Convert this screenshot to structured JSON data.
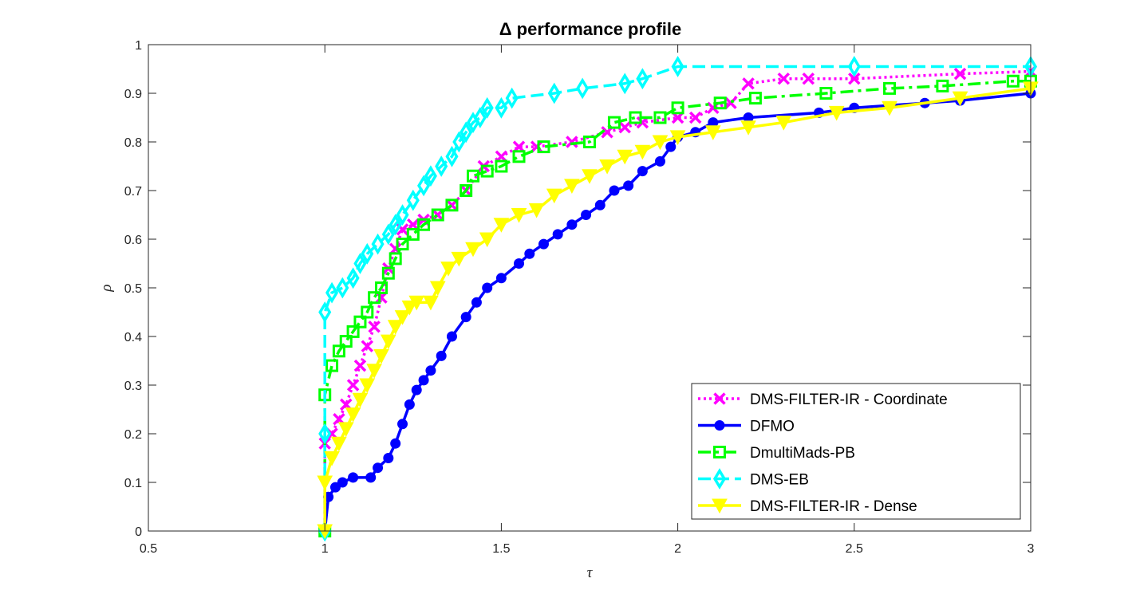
{
  "chart_data": {
    "type": "line",
    "title": "Δ performance profile",
    "xlabel": "τ",
    "ylabel": "ρ",
    "xlim": [
      0.5,
      3
    ],
    "ylim": [
      0,
      1
    ],
    "x_ticks": [
      "0.5",
      "1",
      "1.5",
      "2",
      "2.5",
      "3"
    ],
    "y_ticks": [
      "0",
      "0.1",
      "0.2",
      "0.3",
      "0.4",
      "0.5",
      "0.6",
      "0.7",
      "0.8",
      "0.9",
      "1"
    ],
    "grid": false,
    "legend_position": "bottom-right",
    "series": [
      {
        "name": "DMS-FILTER-IR - Coordinate",
        "color": "#ff00ff",
        "line_style": "dotted",
        "marker": "x",
        "x": [
          1.0,
          1.0,
          1.02,
          1.04,
          1.06,
          1.08,
          1.1,
          1.12,
          1.14,
          1.16,
          1.18,
          1.2,
          1.22,
          1.25,
          1.28,
          1.32,
          1.36,
          1.4,
          1.45,
          1.5,
          1.55,
          1.6,
          1.7,
          1.8,
          1.85,
          1.9,
          2.0,
          2.05,
          2.1,
          2.15,
          2.2,
          2.3,
          2.37,
          2.5,
          2.8,
          3.0
        ],
        "y": [
          0.0,
          0.18,
          0.2,
          0.23,
          0.26,
          0.3,
          0.34,
          0.38,
          0.42,
          0.48,
          0.54,
          0.58,
          0.62,
          0.63,
          0.64,
          0.65,
          0.67,
          0.7,
          0.75,
          0.77,
          0.79,
          0.79,
          0.8,
          0.82,
          0.83,
          0.84,
          0.85,
          0.85,
          0.87,
          0.88,
          0.92,
          0.93,
          0.93,
          0.93,
          0.94,
          0.945
        ]
      },
      {
        "name": "DFMO",
        "color": "#0000ff",
        "line_style": "solid",
        "marker": "o",
        "x": [
          1.0,
          1.01,
          1.03,
          1.05,
          1.08,
          1.13,
          1.15,
          1.18,
          1.2,
          1.22,
          1.24,
          1.26,
          1.28,
          1.3,
          1.33,
          1.36,
          1.4,
          1.43,
          1.46,
          1.5,
          1.55,
          1.58,
          1.62,
          1.66,
          1.7,
          1.74,
          1.78,
          1.82,
          1.86,
          1.9,
          1.95,
          1.98,
          2.0,
          2.05,
          2.1,
          2.2,
          2.4,
          2.5,
          2.7,
          2.8,
          3.0
        ],
        "y": [
          0.0,
          0.07,
          0.09,
          0.1,
          0.11,
          0.11,
          0.13,
          0.15,
          0.18,
          0.22,
          0.26,
          0.29,
          0.31,
          0.33,
          0.36,
          0.4,
          0.44,
          0.47,
          0.5,
          0.52,
          0.55,
          0.57,
          0.59,
          0.61,
          0.63,
          0.65,
          0.67,
          0.7,
          0.71,
          0.74,
          0.76,
          0.79,
          0.81,
          0.82,
          0.84,
          0.85,
          0.86,
          0.87,
          0.88,
          0.885,
          0.9
        ]
      },
      {
        "name": "DmultiMads-PB",
        "color": "#00ff00",
        "line_style": "dashdot",
        "marker": "square",
        "x": [
          1.0,
          1.0,
          1.02,
          1.04,
          1.06,
          1.08,
          1.1,
          1.12,
          1.14,
          1.16,
          1.18,
          1.2,
          1.22,
          1.25,
          1.28,
          1.32,
          1.36,
          1.4,
          1.42,
          1.46,
          1.5,
          1.55,
          1.62,
          1.75,
          1.82,
          1.88,
          1.95,
          2.0,
          2.12,
          2.22,
          2.42,
          2.6,
          2.75,
          2.95,
          3.0
        ],
        "y": [
          0.0,
          0.28,
          0.34,
          0.37,
          0.39,
          0.41,
          0.43,
          0.45,
          0.48,
          0.5,
          0.53,
          0.56,
          0.59,
          0.61,
          0.63,
          0.65,
          0.67,
          0.7,
          0.73,
          0.74,
          0.75,
          0.77,
          0.79,
          0.8,
          0.84,
          0.85,
          0.85,
          0.87,
          0.88,
          0.89,
          0.9,
          0.91,
          0.915,
          0.925,
          0.925
        ]
      },
      {
        "name": "DMS-EB",
        "color": "#00ffff",
        "line_style": "dashed",
        "marker": "diamond",
        "x": [
          1.0,
          1.0,
          1.0,
          1.02,
          1.05,
          1.08,
          1.1,
          1.12,
          1.15,
          1.18,
          1.2,
          1.22,
          1.25,
          1.28,
          1.3,
          1.33,
          1.36,
          1.38,
          1.4,
          1.42,
          1.44,
          1.46,
          1.5,
          1.53,
          1.65,
          1.73,
          1.85,
          1.9,
          2.0,
          2.5,
          3.0
        ],
        "y": [
          0.0,
          0.2,
          0.45,
          0.49,
          0.5,
          0.52,
          0.55,
          0.57,
          0.59,
          0.61,
          0.63,
          0.65,
          0.68,
          0.71,
          0.73,
          0.75,
          0.77,
          0.8,
          0.82,
          0.84,
          0.85,
          0.87,
          0.87,
          0.89,
          0.9,
          0.91,
          0.92,
          0.93,
          0.955,
          0.955,
          0.955
        ]
      },
      {
        "name": "DMS-FILTER-IR - Dense",
        "color": "#ffff00",
        "line_style": "solid",
        "marker": "triangle-down",
        "x": [
          1.0,
          1.0,
          1.02,
          1.04,
          1.06,
          1.08,
          1.1,
          1.12,
          1.14,
          1.16,
          1.18,
          1.2,
          1.22,
          1.24,
          1.26,
          1.3,
          1.32,
          1.35,
          1.38,
          1.42,
          1.46,
          1.5,
          1.55,
          1.6,
          1.65,
          1.7,
          1.75,
          1.8,
          1.85,
          1.9,
          1.95,
          2.0,
          2.1,
          2.2,
          2.3,
          2.45,
          2.6,
          2.8,
          3.0
        ],
        "y": [
          0.0,
          0.1,
          0.15,
          0.18,
          0.21,
          0.24,
          0.27,
          0.3,
          0.33,
          0.36,
          0.39,
          0.42,
          0.44,
          0.46,
          0.47,
          0.47,
          0.5,
          0.54,
          0.56,
          0.58,
          0.6,
          0.63,
          0.65,
          0.66,
          0.69,
          0.71,
          0.73,
          0.75,
          0.77,
          0.78,
          0.8,
          0.81,
          0.82,
          0.83,
          0.84,
          0.86,
          0.87,
          0.89,
          0.91
        ]
      }
    ]
  }
}
